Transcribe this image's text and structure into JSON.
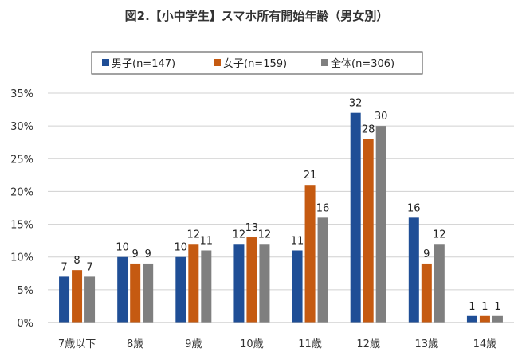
{
  "chart_data": {
    "type": "bar",
    "title": "図2.【小中学生】スマホ所有開始年齢（男女別）",
    "categories": [
      "7歳以下",
      "8歳",
      "9歳",
      "10歳",
      "11歳",
      "12歳",
      "13歳",
      "14歳"
    ],
    "series": [
      {
        "name": "男子(n=147)",
        "color": "#1f4e96",
        "values": [
          7,
          10,
          10,
          12,
          11,
          32,
          16,
          1
        ]
      },
      {
        "name": "女子(n=159)",
        "color": "#c55a11",
        "values": [
          8,
          9,
          12,
          13,
          21,
          28,
          9,
          1
        ]
      },
      {
        "name": "全体(n=306)",
        "color": "#7f7f7f",
        "values": [
          7,
          9,
          11,
          12,
          16,
          30,
          12,
          1
        ]
      }
    ],
    "yticks": [
      "0%",
      "5%",
      "10%",
      "15%",
      "20%",
      "25%",
      "30%",
      "35%"
    ],
    "ylim": [
      0,
      35
    ],
    "yunit": "%",
    "grid": true,
    "legend": "top"
  }
}
